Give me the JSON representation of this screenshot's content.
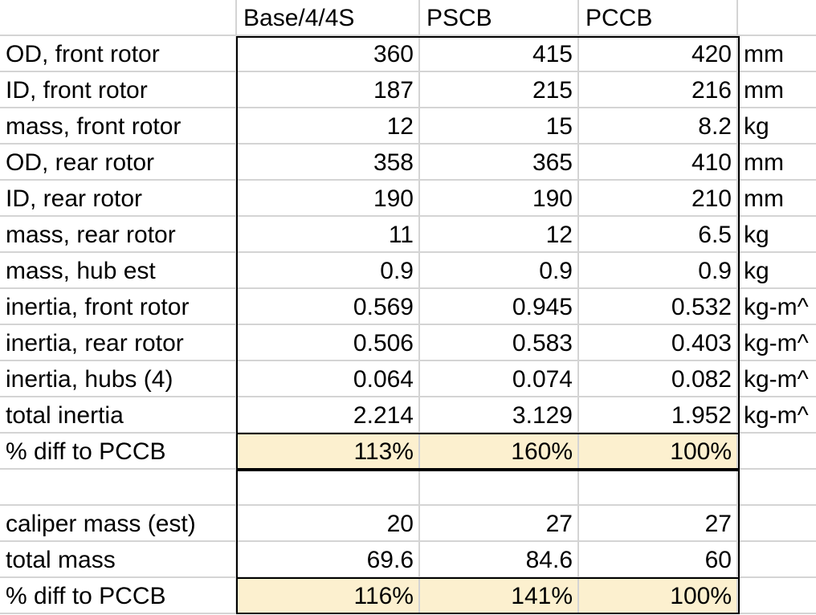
{
  "header": [
    "Base/4/4S",
    "PSCB",
    "PCCB"
  ],
  "rows": [
    {
      "label": "OD, front rotor",
      "values": [
        "360",
        "415",
        "420"
      ],
      "unit": "mm"
    },
    {
      "label": "ID, front rotor",
      "values": [
        "187",
        "215",
        "216"
      ],
      "unit": "mm"
    },
    {
      "label": "mass, front rotor",
      "values": [
        "12",
        "15",
        "8.2"
      ],
      "unit": "kg"
    },
    {
      "label": "OD, rear rotor",
      "values": [
        "358",
        "365",
        "410"
      ],
      "unit": "mm"
    },
    {
      "label": "ID, rear rotor",
      "values": [
        "190",
        "190",
        "210"
      ],
      "unit": "mm"
    },
    {
      "label": "mass, rear rotor",
      "values": [
        "11",
        "12",
        "6.5"
      ],
      "unit": "kg"
    },
    {
      "label": "mass, hub est",
      "values": [
        "0.9",
        "0.9",
        "0.9"
      ],
      "unit": "kg"
    },
    {
      "label": "inertia, front rotor",
      "values": [
        "0.569",
        "0.945",
        "0.532"
      ],
      "unit": "kg-m^"
    },
    {
      "label": "inertia, rear rotor",
      "values": [
        "0.506",
        "0.583",
        "0.403"
      ],
      "unit": "kg-m^"
    },
    {
      "label": "inertia, hubs (4)",
      "values": [
        "0.064",
        "0.074",
        "0.082"
      ],
      "unit": "kg-m^"
    },
    {
      "label": "total inertia",
      "values": [
        "2.214",
        "3.129",
        "1.952"
      ],
      "unit": "kg-m^"
    },
    {
      "label": "% diff to PCCB",
      "values": [
        "113%",
        "160%",
        "100%"
      ],
      "unit": "",
      "highlight": true
    },
    {
      "label": "",
      "values": [
        "",
        "",
        ""
      ],
      "unit": ""
    },
    {
      "label": "caliper mass (est)",
      "values": [
        "20",
        "27",
        "27"
      ],
      "unit": ""
    },
    {
      "label": "total mass",
      "values": [
        "69.6",
        "84.6",
        "60"
      ],
      "unit": ""
    },
    {
      "label": "% diff to PCCB",
      "values": [
        "116%",
        "141%",
        "100%"
      ],
      "unit": "",
      "highlight": true
    }
  ],
  "colors": {
    "highlight": "#fcf0cf",
    "gridline": "#d4d4d4",
    "box_border": "#000000"
  }
}
